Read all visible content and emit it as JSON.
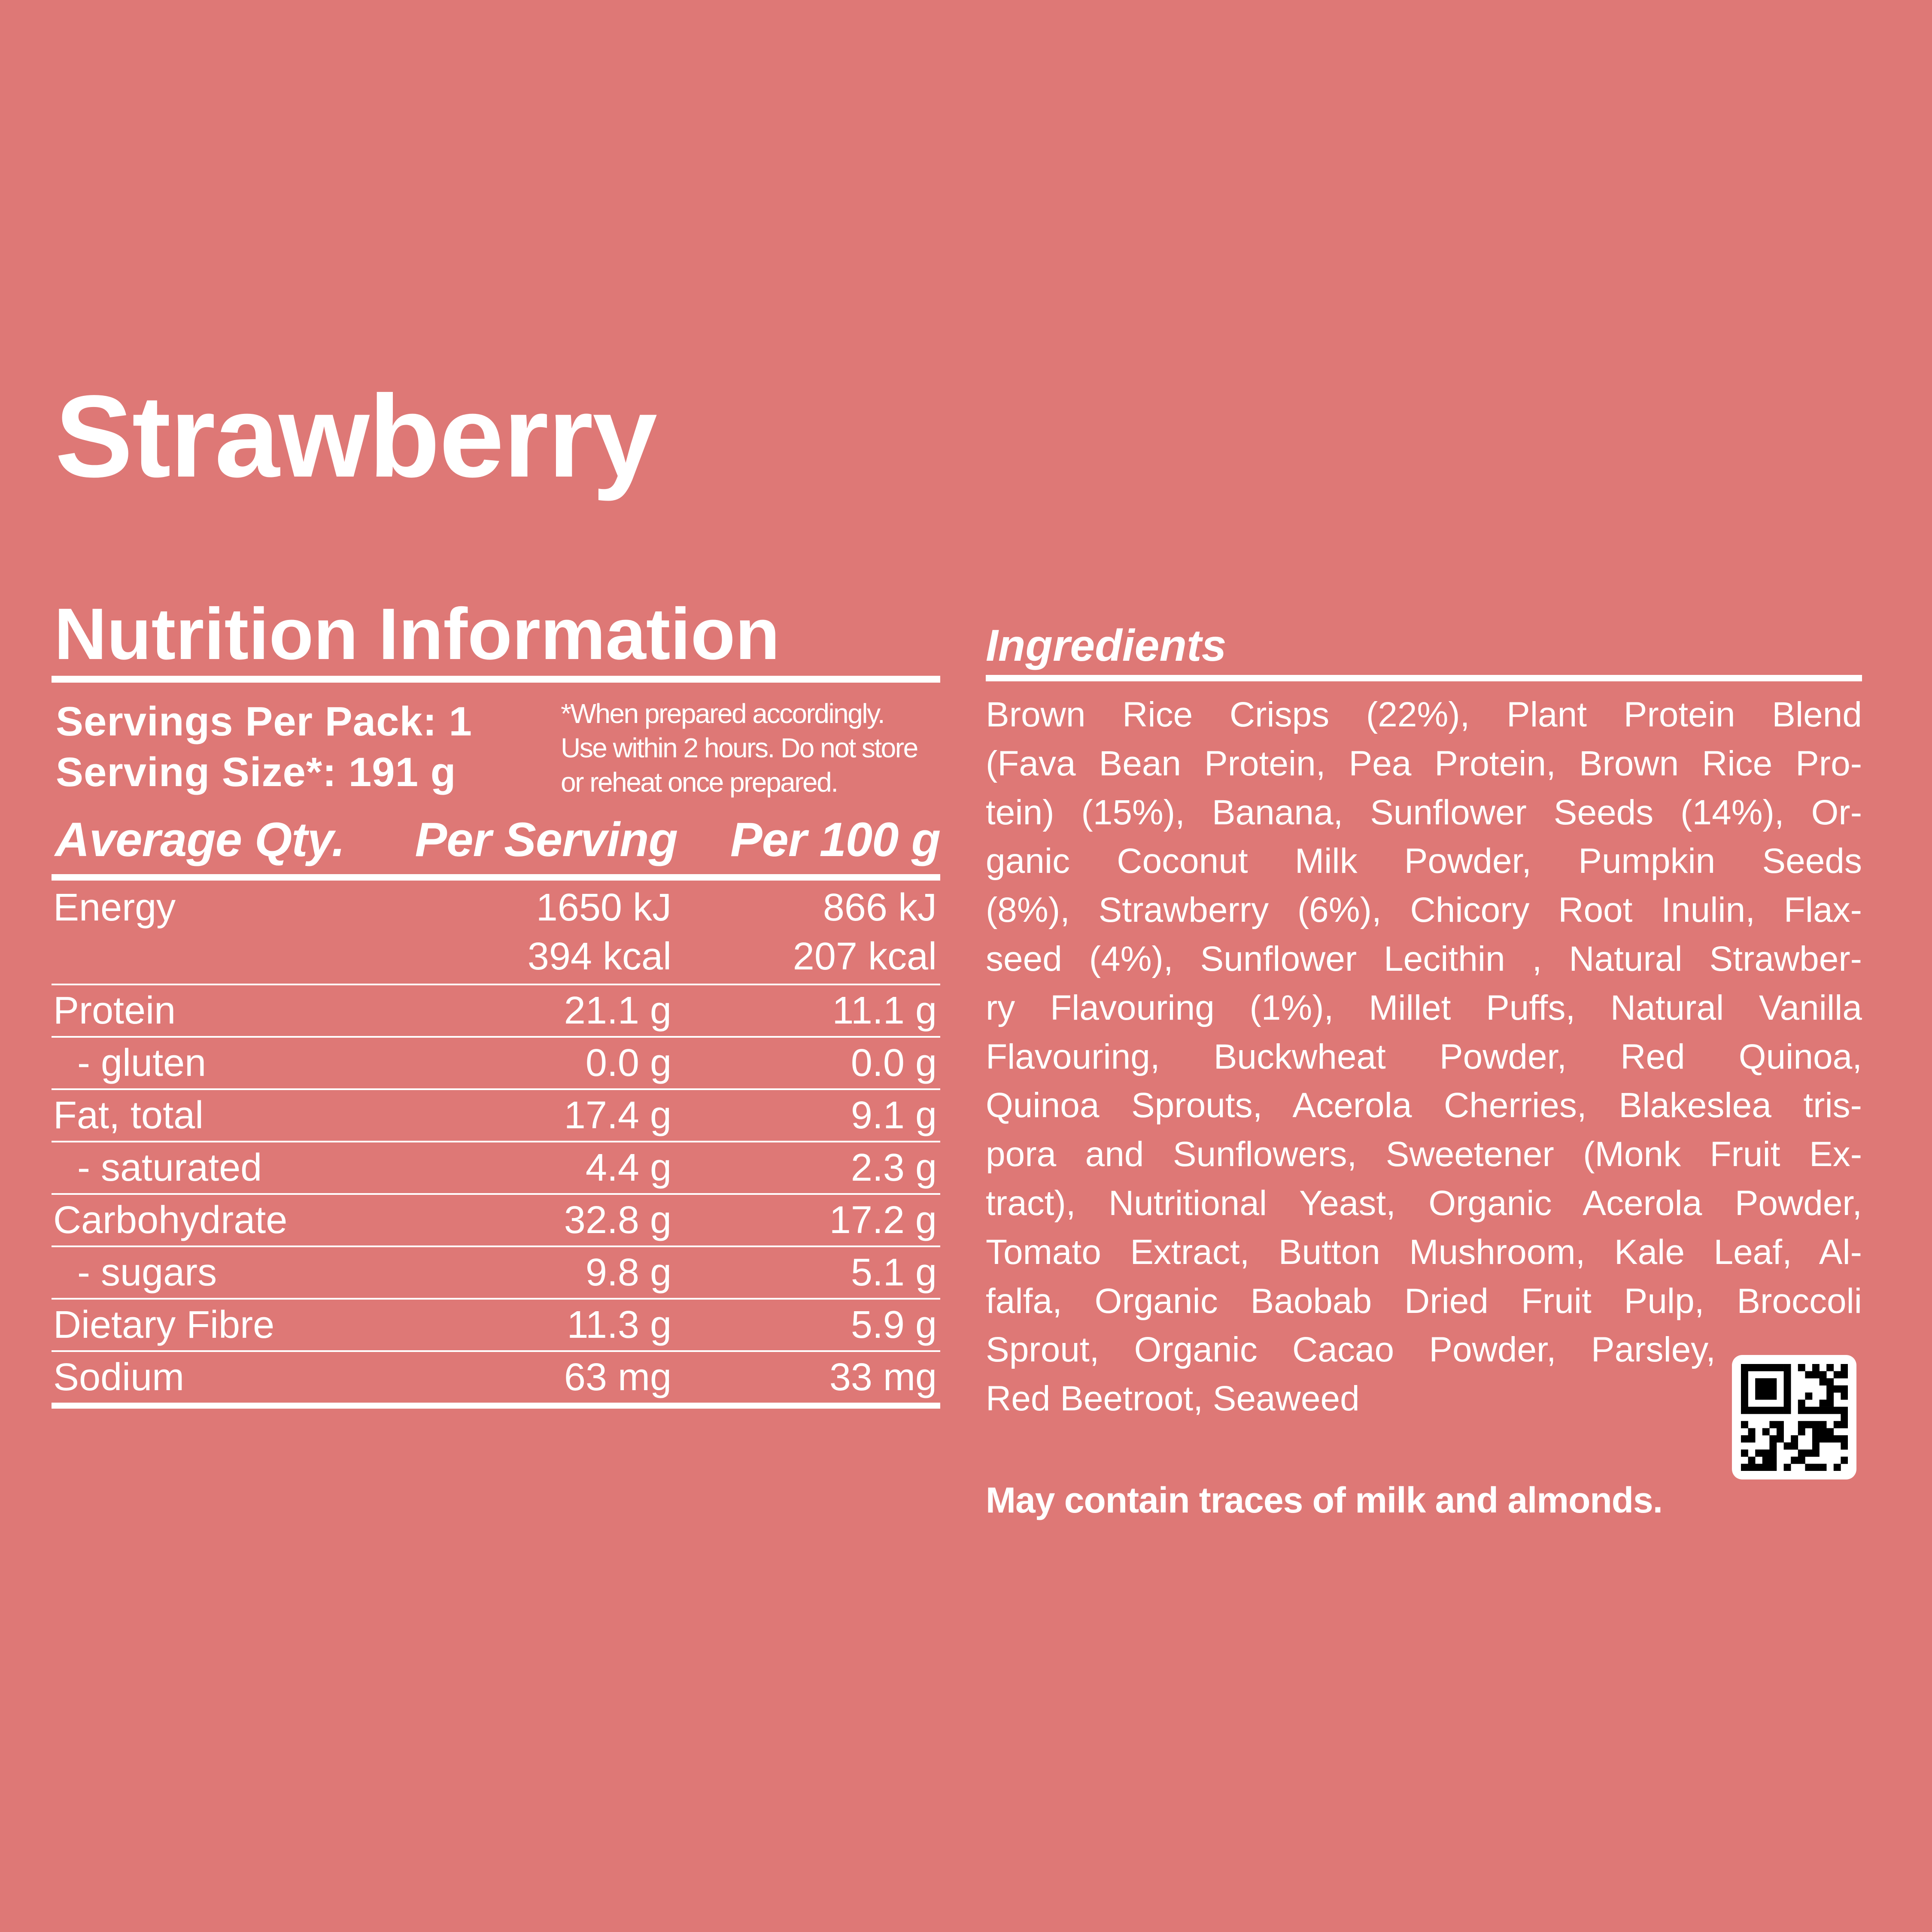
{
  "product": {
    "title": "Strawberry"
  },
  "nutrition": {
    "title": "Nutrition Information",
    "servings_per_pack": "Servings Per Pack: 1",
    "serving_size": "Serving Size*: 191 g",
    "note_lines": [
      "*When prepared accordingly.",
      "Use within 2 hours. Do not store",
      "or reheat once prepared."
    ],
    "headers": {
      "label": "Average Qty.",
      "per_serving": "Per Serving",
      "per_100g": "Per 100 g"
    },
    "rows": [
      {
        "label": "Energy",
        "sub": false,
        "per_serving": [
          "1650 kJ",
          "394 kcal"
        ],
        "per_100g": [
          "866 kJ",
          "207 kcal"
        ]
      },
      {
        "label": "Protein",
        "sub": false,
        "per_serving": [
          "21.1 g"
        ],
        "per_100g": [
          "11.1 g"
        ]
      },
      {
        "label": "- gluten",
        "sub": true,
        "per_serving": [
          "0.0 g"
        ],
        "per_100g": [
          "0.0 g"
        ]
      },
      {
        "label": "Fat, total",
        "sub": false,
        "per_serving": [
          "17.4 g"
        ],
        "per_100g": [
          "9.1 g"
        ]
      },
      {
        "label": "- saturated",
        "sub": true,
        "per_serving": [
          "4.4 g"
        ],
        "per_100g": [
          "2.3 g"
        ]
      },
      {
        "label": "Carbohydrate",
        "sub": false,
        "per_serving": [
          "32.8 g"
        ],
        "per_100g": [
          "17.2 g"
        ]
      },
      {
        "label": "- sugars",
        "sub": true,
        "per_serving": [
          "9.8 g"
        ],
        "per_100g": [
          "5.1 g"
        ]
      },
      {
        "label": "Dietary Fibre",
        "sub": false,
        "per_serving": [
          "11.3 g"
        ],
        "per_100g": [
          "5.9 g"
        ]
      },
      {
        "label": "Sodium",
        "sub": false,
        "per_serving": [
          "63 mg"
        ],
        "per_100g": [
          "33 mg"
        ]
      }
    ]
  },
  "ingredients": {
    "title": "Ingredients",
    "lines": [
      "Brown Rice Crisps (22%), Plant Protein Blend",
      "(Fava Bean Protein, Pea Protein, Brown Rice Pro-",
      "tein) (15%), Banana, Sunflower Seeds (14%), Or-",
      "ganic Coconut Milk Powder, Pumpkin Seeds",
      "(8%), Strawberry (6%), Chicory Root Inulin, Flax-",
      "seed (4%), Sunflower Lecithin , Natural Strawber-",
      "ry Flavouring (1%), Millet Puffs, Natural Vanilla",
      "Flavouring, Buckwheat Powder, Red Quinoa,",
      "Quinoa Sprouts, Acerola Cherries, Blakeslea tris-",
      "pora and Sunflowers, Sweetener (Monk Fruit Ex-",
      "tract), Nutritional Yeast, Organic Acerola Powder,",
      "Tomato Extract, Button Mushroom, Kale Leaf, Al-",
      "falfa, Organic Baobab Dried Fruit Pulp, Broccoli",
      "Sprout, Organic Cacao Powder, Parsley,",
      "Red Beetroot, Seaweed"
    ],
    "allergen": "May contain traces of milk and almonds."
  },
  "qr_code": {
    "icon": "qr-code-icon"
  },
  "colors": {
    "background": "#DE7876",
    "text": "#FFFFFF"
  }
}
